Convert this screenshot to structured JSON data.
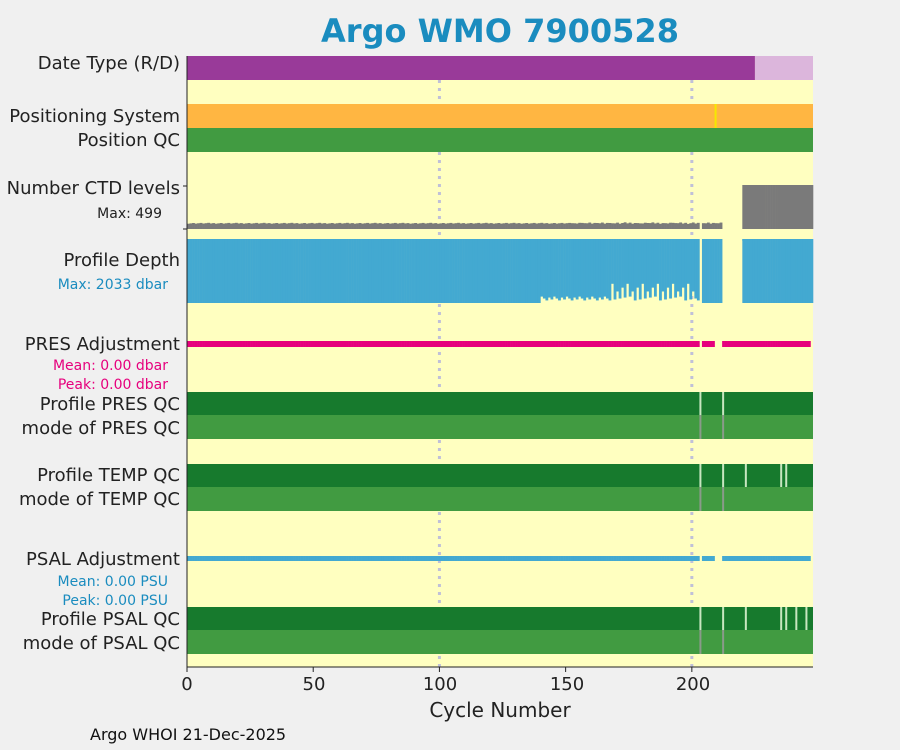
{
  "title": "Argo WMO 7900528",
  "footer": "Argo WHOI 21-Dec-2025",
  "colors": {
    "background": "#ffffc0",
    "date_type_R": "#993a99",
    "date_type_D": "#dcb6dc",
    "positioning": "#ffb642",
    "position_qc": "#419b41",
    "ctd": "#7a7a7a",
    "depth": "#43a9d1",
    "pres_adj": "#e6007d",
    "psal_adj": "#43a9d1",
    "profile_qc": "#177a2d",
    "mode_qc": "#419b41",
    "grid": "#c0c0d8",
    "title": "#1a8cbf",
    "ann_depth": "#1a8cbf",
    "ann_pres": "#e6007d",
    "ann_psal": "#1a8cbf"
  },
  "labels": {
    "date_type": "Date Type (R/D)",
    "positioning_system": "Positioning System",
    "position_qc": "Position QC",
    "ctd_levels": "Number CTD levels",
    "ctd_max": "Max: 499",
    "profile_depth": "Profile Depth",
    "depth_max": "Max: 2033 dbar",
    "pres_adjustment": "PRES Adjustment",
    "pres_mean": "Mean: 0.00 dbar",
    "pres_peak": "Peak: 0.00 dbar",
    "profile_pres_qc": "Profile PRES QC",
    "mode_pres_qc": "mode of PRES QC",
    "profile_temp_qc": "Profile TEMP QC",
    "mode_temp_qc": "mode of TEMP QC",
    "psal_adjustment": "PSAL Adjustment",
    "psal_mean": "Mean: 0.00 PSU",
    "psal_peak": "Peak: 0.00 PSU",
    "profile_psal_qc": "Profile PSAL QC",
    "mode_psal_qc": "mode of PSAL QC"
  },
  "chart_data": {
    "type": "bar",
    "title": "Argo WMO 7900528",
    "xlabel": "Cycle Number",
    "xlim": [
      0,
      248
    ],
    "xticks": [
      "0",
      "50",
      "100",
      "150",
      "200"
    ],
    "xtick_values": [
      0,
      50,
      100,
      150,
      200
    ],
    "grid_x": [
      100,
      200
    ],
    "date_type": {
      "realtime_until": 225,
      "delayed_from": 225,
      "last_cycle": 248
    },
    "positioning_system_anomaly_cycle": 209,
    "ctd_levels": {
      "max": 499,
      "high_from_cycle": 220,
      "typical_low": 65,
      "missing_cycles": [
        203,
        212,
        213,
        214,
        215,
        216,
        217,
        218,
        219
      ]
    },
    "profile_depth": {
      "max_dbar": 2033,
      "missing_cycles": [
        203,
        212,
        213,
        214,
        215,
        216,
        217,
        218,
        219
      ],
      "shallow_cycles": [
        168,
        170,
        172,
        174,
        176,
        178,
        180,
        182,
        184,
        186,
        188,
        190,
        192,
        194,
        196,
        198,
        200
      ]
    },
    "pres_adjustment": {
      "mean_dbar": 0.0,
      "peak_dbar": 0.0,
      "gap_cycles": [
        203,
        209,
        210,
        211
      ]
    },
    "psal_adjustment": {
      "mean_psu": 0.0,
      "peak_psu": 0.0,
      "gap_cycles": [
        203,
        209,
        210,
        211
      ]
    },
    "qc_gap_cycles": [
      203,
      212
    ],
    "temp_qc_flag_cycles": [
      221,
      235,
      237
    ],
    "psal_qc_flag_cycles": [
      221,
      235,
      237,
      241,
      245
    ]
  }
}
